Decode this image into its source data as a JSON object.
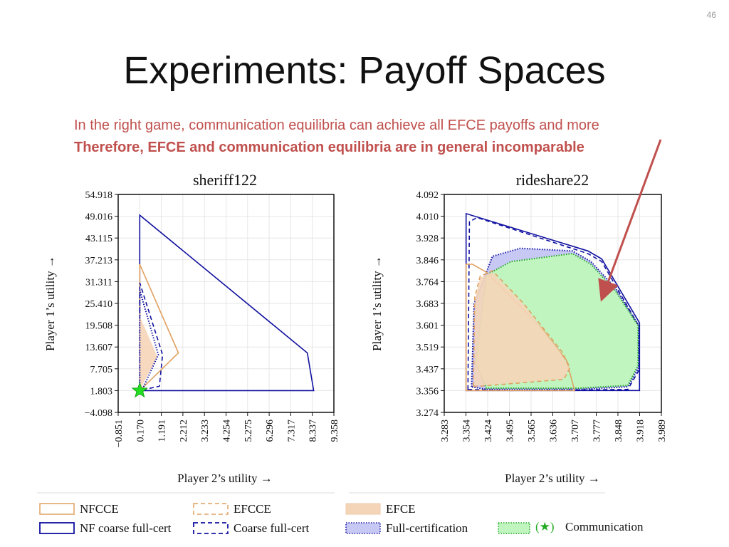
{
  "slide": {
    "number": "46",
    "title": "Experiments: Payoff Spaces",
    "subtitle_1": "In the right game, communication equilibria can achieve all EFCE payoffs and more",
    "subtitle_2": "Therefore, EFCE and communication equilibria are in general incomparable"
  },
  "chart_data": [
    {
      "type": "area",
      "title": "sheriff122",
      "xlabel": "Player 2’s utility →",
      "ylabel": "Player 1’s utility →",
      "xticks": [
        "−0.851",
        "0.170",
        "1.191",
        "2.212",
        "3.233",
        "4.254",
        "5.275",
        "6.296",
        "7.317",
        "8.337",
        "9.358"
      ],
      "yticks": [
        "54.918",
        "49.016",
        "43.115",
        "37.213",
        "31.311",
        "25.410",
        "19.508",
        "13.607",
        "7.705",
        "1.803",
        "−4.098"
      ],
      "xlim": [
        -0.851,
        9.358
      ],
      "ylim": [
        -4.098,
        54.918
      ],
      "grid": true,
      "series": [
        {
          "name": "NF coarse full-cert",
          "color": "#1010a0",
          "style": "solid",
          "x": [
            0.17,
            0.17,
            8.1,
            8.4,
            0.17
          ],
          "y": [
            1.803,
            49.3,
            12.0,
            1.803,
            1.803
          ]
        },
        {
          "name": "NFCCE",
          "color": "#e0a060",
          "style": "solid",
          "x": [
            0.17,
            0.17,
            2.0,
            0.17
          ],
          "y": [
            1.803,
            36.0,
            12.0,
            1.803
          ]
        },
        {
          "name": "Coarse full-cert",
          "color": "#1010a0",
          "style": "dashed",
          "x": [
            0.17,
            0.17,
            1.25,
            1.1,
            0.17
          ],
          "y": [
            1.803,
            31.0,
            11.5,
            3.0,
            1.803
          ]
        },
        {
          "name": "EFCE",
          "color": "#f5d5b8",
          "style": "fill",
          "x": [
            0.17,
            0.17,
            1.0,
            0.17
          ],
          "y": [
            1.803,
            22.0,
            11.0,
            1.803
          ]
        },
        {
          "name": "Full-certification",
          "color": "#1010a0",
          "style": "dotted",
          "x": [
            0.17,
            0.17,
            1.05,
            0.3,
            0.17
          ],
          "y": [
            1.803,
            29.0,
            11.5,
            2.2,
            1.803
          ]
        }
      ],
      "markers": [
        {
          "name": "Communication",
          "x": 0.17,
          "y": 1.803,
          "shape": "star",
          "color": "#22dd22"
        }
      ]
    },
    {
      "type": "area",
      "title": "rideshare22",
      "xlabel": "Player 2’s utility →",
      "ylabel": "Player 1’s utility →",
      "xticks": [
        "3.283",
        "3.354",
        "3.424",
        "3.495",
        "3.565",
        "3.636",
        "3.707",
        "3.777",
        "3.848",
        "3.918",
        "3.989"
      ],
      "yticks": [
        "4.092",
        "4.010",
        "3.928",
        "3.846",
        "3.764",
        "3.683",
        "3.601",
        "3.519",
        "3.437",
        "3.356",
        "3.274"
      ],
      "xlim": [
        3.283,
        3.989
      ],
      "ylim": [
        3.274,
        4.092
      ],
      "grid": true,
      "series": [
        {
          "name": "NF coarse full-cert",
          "color": "#1010a0",
          "style": "solid",
          "x": [
            3.354,
            3.354,
            3.75,
            3.795,
            3.918,
            3.918,
            3.354
          ],
          "y": [
            3.356,
            4.02,
            3.88,
            3.85,
            3.61,
            3.356,
            3.356
          ]
        },
        {
          "name": "Coarse full-cert",
          "color": "#1010a0",
          "style": "dashed",
          "x": [
            3.36,
            3.365,
            3.39,
            3.75,
            3.795,
            3.915,
            3.915,
            3.88,
            3.5,
            3.36
          ],
          "y": [
            3.36,
            3.99,
            4.005,
            3.87,
            3.84,
            3.6,
            3.43,
            3.36,
            3.356,
            3.36
          ]
        },
        {
          "name": "Full-certification",
          "color": "#1010a0",
          "style": "dotted",
          "fill": "#c8c8f5",
          "x": [
            3.372,
            3.38,
            3.44,
            3.53,
            3.7,
            3.76,
            3.84,
            3.915,
            3.915,
            3.88,
            3.72,
            3.42,
            3.372
          ],
          "y": [
            3.37,
            3.68,
            3.86,
            3.89,
            3.88,
            3.84,
            3.74,
            3.6,
            3.44,
            3.37,
            3.36,
            3.36,
            3.37
          ]
        },
        {
          "name": "Communication",
          "color": "#22aa22",
          "style": "dotted",
          "fill": "#c0f5c0",
          "x": [
            3.385,
            3.42,
            3.5,
            3.7,
            3.76,
            3.84,
            3.913,
            3.913,
            3.88,
            3.72,
            3.42,
            3.385
          ],
          "y": [
            3.46,
            3.79,
            3.84,
            3.87,
            3.83,
            3.73,
            3.6,
            3.45,
            3.375,
            3.365,
            3.365,
            3.46
          ]
        },
        {
          "name": "NFCCE",
          "color": "#e0a060",
          "style": "solid",
          "x": [
            3.354,
            3.354,
            3.375,
            3.42,
            3.6,
            3.68,
            3.707,
            3.354
          ],
          "y": [
            3.356,
            3.83,
            3.83,
            3.8,
            3.59,
            3.47,
            3.356,
            3.356
          ]
        },
        {
          "name": "EFCE",
          "color": "#f5d5b8",
          "style": "fill",
          "x": [
            3.38,
            3.384,
            3.4,
            3.44,
            3.54,
            3.66,
            3.69,
            3.67,
            3.4,
            3.38
          ],
          "y": [
            3.375,
            3.7,
            3.78,
            3.8,
            3.68,
            3.5,
            3.44,
            3.4,
            3.375,
            3.375
          ]
        },
        {
          "name": "EFCCE",
          "color": "#e0a060",
          "style": "dashed",
          "x": [
            3.378,
            3.382,
            3.4,
            3.44,
            3.54,
            3.665,
            3.692,
            3.672,
            3.398,
            3.378
          ],
          "y": [
            3.372,
            3.705,
            3.785,
            3.806,
            3.684,
            3.503,
            3.442,
            3.398,
            3.372,
            3.372
          ]
        }
      ]
    }
  ],
  "legend": {
    "nfcce": "NFCCE",
    "efcce": "EFCCE",
    "efce": "EFCE",
    "nf_coarse": "NF coarse full-cert",
    "coarse": "Coarse full-cert",
    "fullcert": "Full-certification",
    "comm_star": "(★)",
    "comm": "Communication"
  },
  "colors": {
    "accent_red": "#c0504d",
    "navy": "#1010a0",
    "orange": "#e0a060",
    "peach": "#f5d5b8",
    "lavender": "#c8c8f5",
    "mint": "#c0f5c0",
    "green": "#22aa22"
  }
}
